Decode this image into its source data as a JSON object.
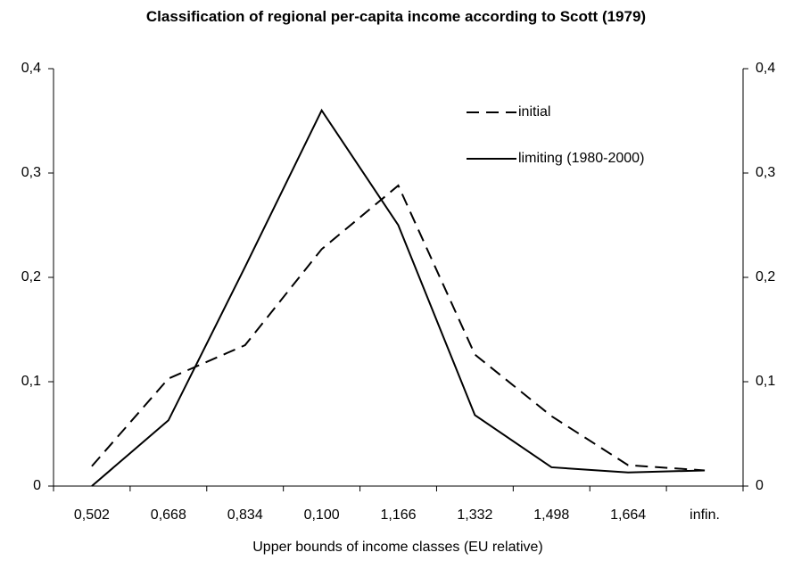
{
  "chart_data": {
    "type": "line",
    "title": "Classification of regional per-capita income according to Scott (1979)",
    "x_label": "Upper bounds of income classes (EU relative)",
    "categories": [
      "0,502",
      "0,668",
      "0,834",
      "0,100",
      "1,166",
      "1,332",
      "1,498",
      "1,664",
      "infin."
    ],
    "series": [
      {
        "name": "initial",
        "color": "#000000",
        "line_style": "dashed",
        "values": [
          0.019,
          0.103,
          0.135,
          0.227,
          0.288,
          0.126,
          0.067,
          0.02,
          0.015
        ]
      },
      {
        "name": "limiting (1980-2000)",
        "color": "#000000",
        "line_style": "solid",
        "values": [
          0,
          0.063,
          0.21,
          0.36,
          0.25,
          0.068,
          0.018,
          0.013,
          0.015
        ]
      }
    ],
    "ylim": [
      0,
      0.4
    ],
    "yticks": [
      0,
      {
        "value": 0.1,
        "label": "0,1"
      },
      {
        "value": 0.2,
        "label": "0,2"
      },
      {
        "value": 0.3,
        "label": "0,3"
      },
      {
        "value": 0.4,
        "label": "0,4"
      }
    ],
    "y2lim": [
      0,
      0.4
    ],
    "y2ticks": [
      0,
      {
        "value": 0.1,
        "label": "0,1"
      },
      {
        "value": 0.2,
        "label": "0,2"
      },
      {
        "value": 0.3,
        "label": "0,3"
      },
      {
        "value": 0.4,
        "label": "0,4"
      }
    ],
    "grid": false,
    "legend": "upper-right"
  }
}
